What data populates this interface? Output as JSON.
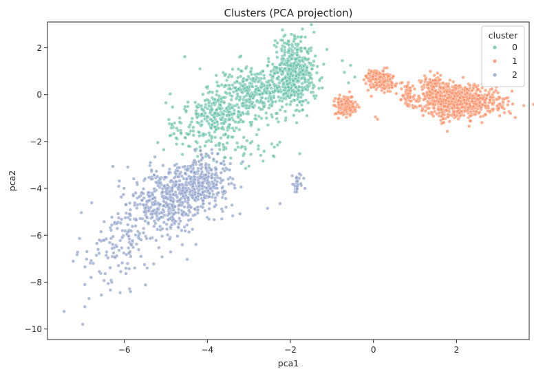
{
  "chart_data": {
    "type": "scatter",
    "title": "Clusters (PCA projection)",
    "xlabel": "pca1",
    "ylabel": "pca2",
    "xlim": [
      -7.85,
      3.75
    ],
    "ylim": [
      -10.45,
      3.1
    ],
    "xticks": [
      {
        "value": -6,
        "label": "−6"
      },
      {
        "value": -4,
        "label": "−4"
      },
      {
        "value": -2,
        "label": "−2"
      },
      {
        "value": 0,
        "label": "0"
      },
      {
        "value": 2,
        "label": "2"
      }
    ],
    "yticks": [
      {
        "value": 2,
        "label": "2"
      },
      {
        "value": 0,
        "label": "0"
      },
      {
        "value": -2,
        "label": "−2"
      },
      {
        "value": -4,
        "label": "−4"
      },
      {
        "value": -6,
        "label": "−6"
      },
      {
        "value": -8,
        "label": "−8"
      },
      {
        "value": -10,
        "label": "−10"
      }
    ],
    "grid": false,
    "legend": {
      "title": "cluster",
      "placement": "top-right",
      "entries": [
        {
          "label": "0",
          "color": "#66c2a5"
        },
        {
          "label": "1",
          "color": "#fc8d62"
        },
        {
          "label": "2",
          "color": "#8da0cb"
        }
      ]
    },
    "series": [
      {
        "name": "0",
        "color": "#66c2a5",
        "point_clouds": [
          {
            "cx": -1.9,
            "cy": 1.0,
            "sx": 0.22,
            "sy": 0.75,
            "n": 420,
            "rot": 0.0
          },
          {
            "cx": -2.7,
            "cy": 0.3,
            "sx": 0.55,
            "sy": 0.5,
            "n": 360,
            "rot": 0.15
          },
          {
            "cx": -3.6,
            "cy": -0.75,
            "sx": 0.5,
            "sy": 0.45,
            "n": 240,
            "rot": 0.2
          },
          {
            "cx": -4.0,
            "cy": -1.6,
            "sx": 0.45,
            "sy": 0.5,
            "n": 90,
            "rot": 0.4
          },
          {
            "cx": -3.1,
            "cy": -2.3,
            "sx": 0.55,
            "sy": 0.35,
            "n": 40,
            "rot": 0.0
          }
        ],
        "points": [
          [
            -5.05,
            -2.35
          ],
          [
            -4.9,
            -1.75
          ],
          [
            -4.75,
            -1.85
          ],
          [
            -4.6,
            -2.55
          ],
          [
            -4.45,
            -2.2
          ],
          [
            -1.4,
            1.65
          ],
          [
            -1.55,
            1.95
          ],
          [
            -1.35,
            1.2
          ],
          [
            -1.5,
            0.1
          ],
          [
            -1.6,
            -0.9
          ],
          [
            -1.85,
            -1.2
          ],
          [
            -3.0,
            -3.05
          ],
          [
            -2.45,
            -2.1
          ],
          [
            -0.75,
            1.45
          ],
          [
            -0.7,
            0.95
          ],
          [
            -0.55,
            1.25
          ],
          [
            -0.45,
            0.75
          ],
          [
            -0.6,
            0.5
          ],
          [
            -1.2,
            1.3
          ],
          [
            -1.3,
            0.6
          ]
        ]
      },
      {
        "name": "1",
        "color": "#fc8d62",
        "point_clouds": [
          {
            "cx": 1.9,
            "cy": -0.2,
            "sx": 0.45,
            "sy": 0.38,
            "n": 650,
            "rot": 0.0
          },
          {
            "cx": 2.55,
            "cy": -0.35,
            "sx": 0.4,
            "sy": 0.25,
            "n": 150,
            "rot": 0.0
          },
          {
            "cx": 1.45,
            "cy": 0.4,
            "sx": 0.12,
            "sy": 0.22,
            "n": 60,
            "rot": 0.0
          },
          {
            "cx": 0.2,
            "cy": 0.55,
            "sx": 0.16,
            "sy": 0.2,
            "n": 180,
            "rot": 0.0
          },
          {
            "cx": 0.0,
            "cy": 0.85,
            "sx": 0.1,
            "sy": 0.1,
            "n": 50,
            "rot": 0.0
          },
          {
            "cx": -0.65,
            "cy": -0.5,
            "sx": 0.12,
            "sy": 0.2,
            "n": 150,
            "rot": 0.0
          },
          {
            "cx": 0.85,
            "cy": 0.0,
            "sx": 0.06,
            "sy": 0.25,
            "n": 45,
            "rot": 0.0
          }
        ],
        "points": [
          [
            3.35,
            -0.4
          ],
          [
            3.3,
            -0.8
          ],
          [
            3.2,
            -0.15
          ],
          [
            3.1,
            -0.55
          ],
          [
            0.05,
            -0.95
          ],
          [
            0.1,
            -1.05
          ],
          [
            -0.9,
            -0.8
          ],
          [
            -0.85,
            -0.2
          ],
          [
            0.45,
            0.3
          ],
          [
            0.55,
            0.05
          ],
          [
            1.0,
            -0.5
          ],
          [
            0.8,
            0.35
          ],
          [
            2.9,
            0.1
          ],
          [
            2.8,
            -0.7
          ]
        ]
      },
      {
        "name": "2",
        "color": "#8da0cb",
        "point_clouds": [
          {
            "cx": -4.0,
            "cy": -3.6,
            "sx": 0.28,
            "sy": 0.55,
            "n": 200,
            "rot": 0.0
          },
          {
            "cx": -4.6,
            "cy": -4.1,
            "sx": 0.4,
            "sy": 0.6,
            "n": 260,
            "rot": 0.35
          },
          {
            "cx": -5.2,
            "cy": -4.8,
            "sx": 0.4,
            "sy": 0.6,
            "n": 230,
            "rot": 0.35
          },
          {
            "cx": -5.9,
            "cy": -5.9,
            "sx": 0.35,
            "sy": 0.55,
            "n": 90,
            "rot": 0.35
          },
          {
            "cx": -6.3,
            "cy": -7.2,
            "sx": 0.35,
            "sy": 0.6,
            "n": 40,
            "rot": 0.3
          },
          {
            "cx": -1.85,
            "cy": -3.7,
            "sx": 0.06,
            "sy": 0.22,
            "n": 25,
            "rot": 0.0
          }
        ],
        "points": [
          [
            -7.45,
            -9.25
          ],
          [
            -7.0,
            -9.8
          ],
          [
            -6.95,
            -9.05
          ],
          [
            -6.85,
            -8.7
          ],
          [
            -6.95,
            -8.1
          ],
          [
            -6.8,
            -7.8
          ],
          [
            -6.6,
            -7.55
          ],
          [
            -6.55,
            -8.55
          ],
          [
            -6.3,
            -8.0
          ],
          [
            -6.1,
            -8.45
          ],
          [
            -5.85,
            -8.4
          ],
          [
            -6.9,
            -6.7
          ],
          [
            -6.75,
            -7.2
          ],
          [
            -6.6,
            -6.2
          ],
          [
            -5.6,
            -6.9
          ],
          [
            -5.45,
            -7.4
          ],
          [
            -4.3,
            -2.35
          ],
          [
            -4.15,
            -2.55
          ],
          [
            -3.85,
            -2.75
          ],
          [
            -2.55,
            -4.85
          ],
          [
            -2.25,
            -4.65
          ],
          [
            -1.75,
            -3.8
          ],
          [
            -1.65,
            -4.0
          ],
          [
            -1.85,
            -4.15
          ],
          [
            -3.65,
            -5.3
          ],
          [
            -3.55,
            -4.8
          ]
        ]
      }
    ]
  }
}
